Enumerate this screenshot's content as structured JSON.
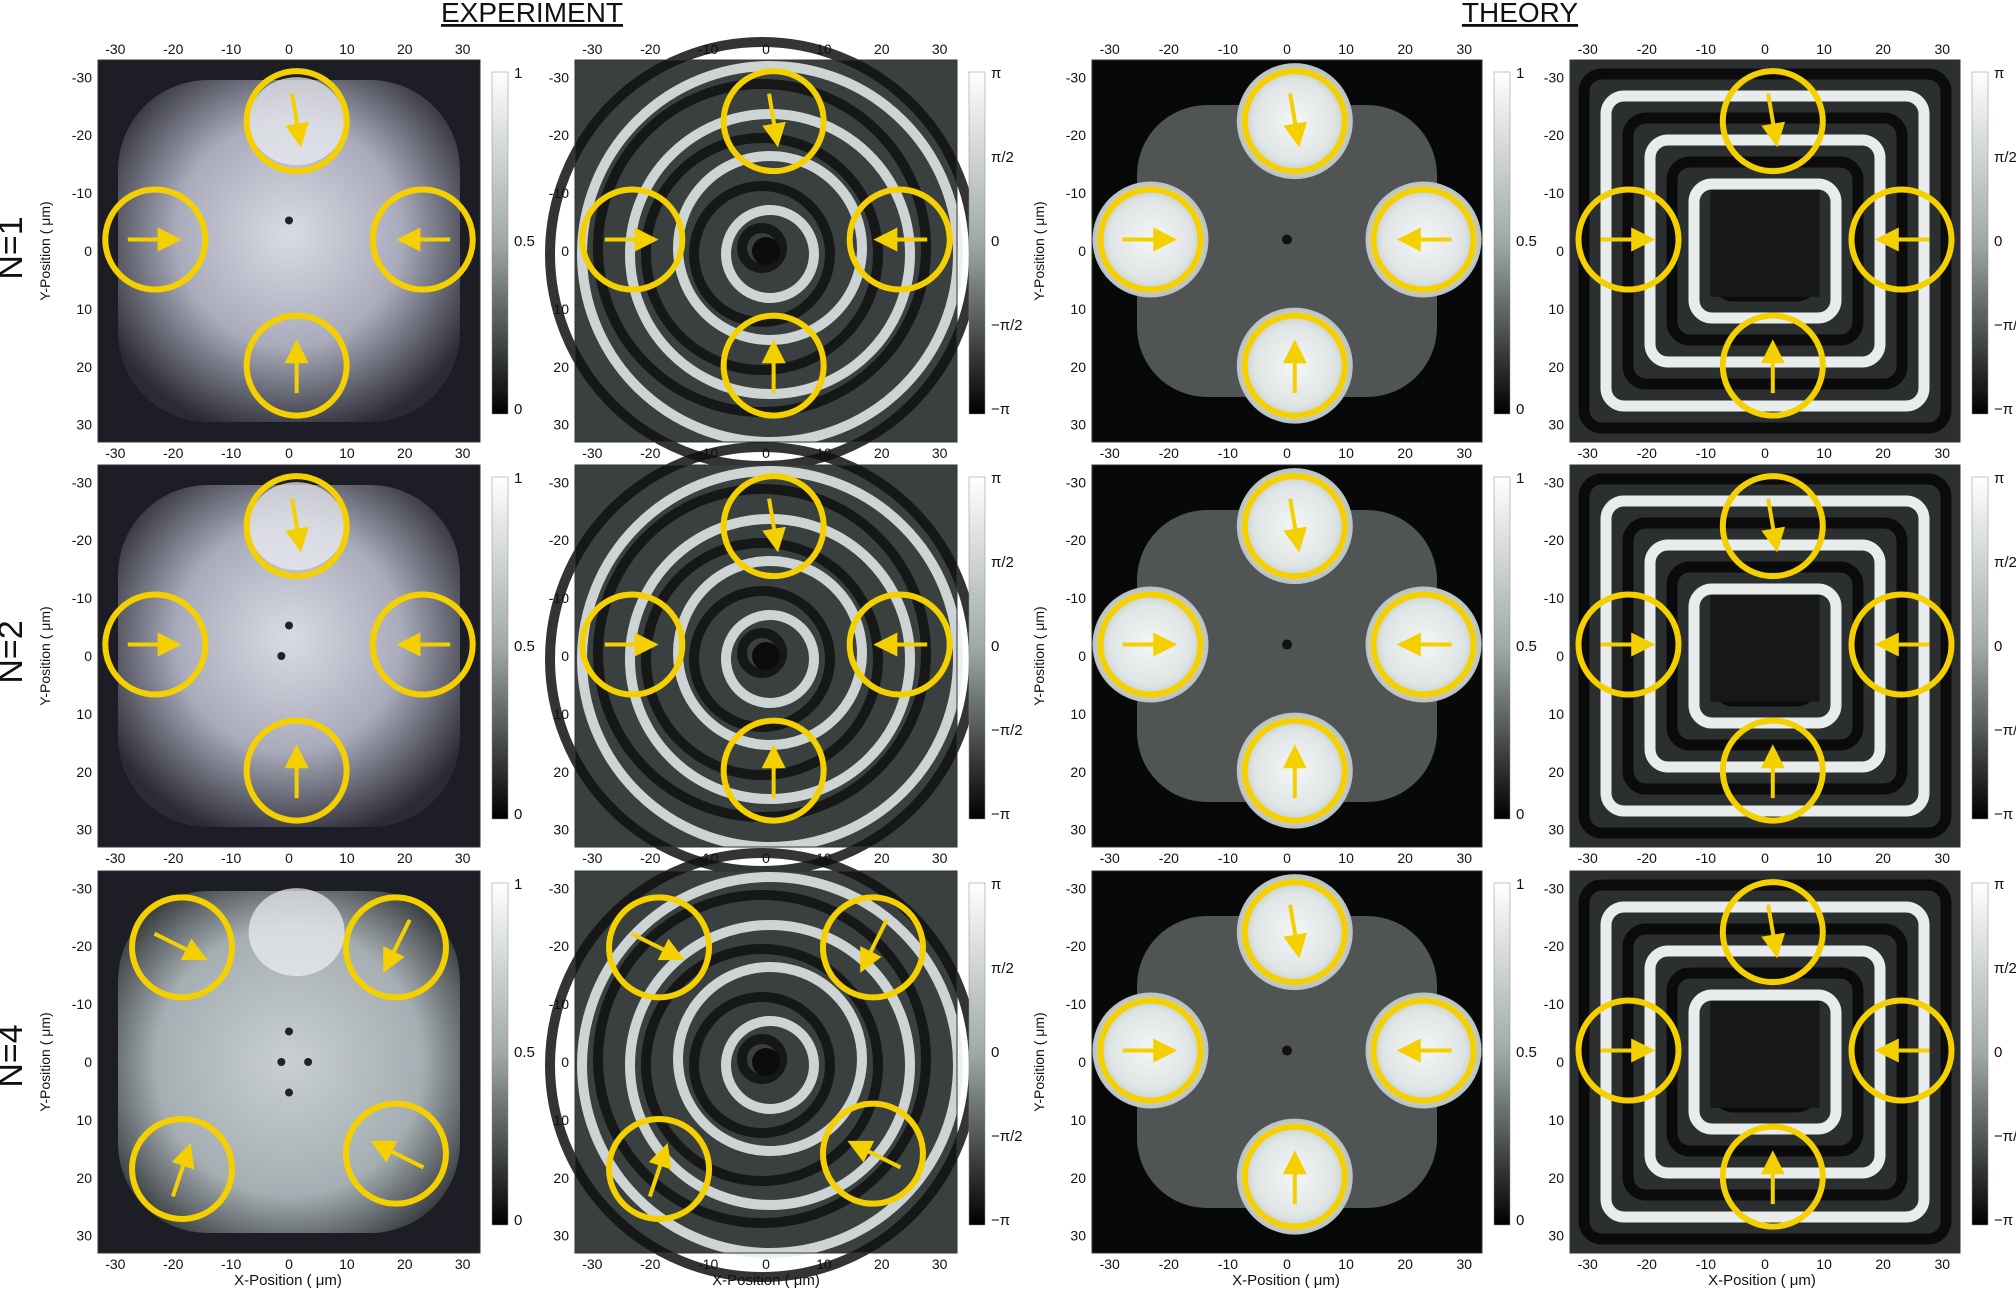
{
  "section_titles": [
    "EXPERIMENT",
    "THEORY"
  ],
  "row_labels": [
    "N=1",
    "N=2",
    "N=4"
  ],
  "axis": {
    "x_label": "X-Position ( μm)",
    "y_label": "Y-Position ( μm)",
    "ticks": [
      "-30",
      "-20",
      "-10",
      "0",
      "10",
      "20",
      "30"
    ]
  },
  "colorbars": {
    "intensity_ticks": [
      "1",
      "0.5",
      "0"
    ],
    "phase_ticks": [
      "π",
      "π/2",
      "0",
      "−π/2",
      "−π"
    ]
  },
  "colors": {
    "circle": "#f5d000",
    "arrow": "#f5d000"
  }
}
